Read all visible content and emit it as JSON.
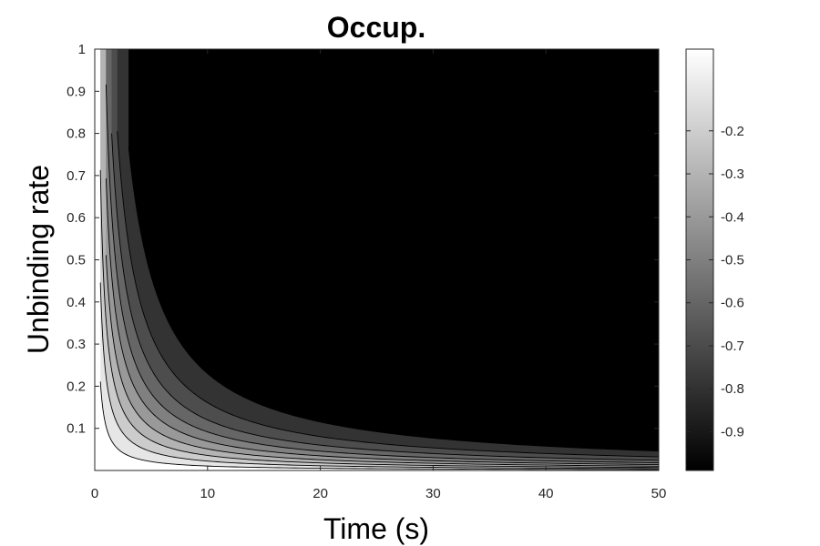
{
  "chart_data": {
    "type": "heatmap",
    "subtype": "filled-contour",
    "title": "Occup.",
    "xlabel": "Time (s)",
    "ylabel": "Unbinding rate",
    "xlim": [
      0,
      50
    ],
    "ylim": [
      0,
      1
    ],
    "xticks": [
      0,
      10,
      20,
      30,
      40,
      50
    ],
    "yticks": [
      0.1,
      0.2,
      0.3,
      0.4,
      0.5,
      0.6,
      0.7,
      0.8,
      0.9,
      1
    ],
    "colormap": "gray",
    "color_limits": [
      -1,
      0
    ],
    "colorbar_ticks": [
      -0.9,
      -0.8,
      -0.7,
      -0.6,
      -0.5,
      -0.4,
      -0.3,
      -0.2
    ],
    "contour_levels": [
      -0.1,
      -0.2,
      -0.3,
      -0.4,
      -0.5,
      -0.6,
      -0.7,
      -0.8,
      -0.9
    ],
    "level_line_points": [
      {
        "level": -0.1,
        "points": [
          [
            0.5,
            0.211
          ],
          [
            1,
            0.105
          ],
          [
            3,
            0.035
          ],
          [
            5,
            0.0211
          ],
          [
            10,
            0.0105
          ],
          [
            20,
            0.0053
          ],
          [
            50,
            0.0021
          ]
        ]
      },
      {
        "level": -0.2,
        "points": [
          [
            0.5,
            0.446
          ],
          [
            1,
            0.223
          ],
          [
            3,
            0.074
          ],
          [
            5,
            0.0446
          ],
          [
            10,
            0.0223
          ],
          [
            20,
            0.0112
          ],
          [
            50,
            0.0045
          ]
        ]
      },
      {
        "level": -0.3,
        "points": [
          [
            0.5,
            0.713
          ],
          [
            1,
            0.357
          ],
          [
            3,
            0.119
          ],
          [
            5,
            0.0713
          ],
          [
            10,
            0.0357
          ],
          [
            20,
            0.0178
          ],
          [
            50,
            0.0071
          ]
        ]
      },
      {
        "level": -0.4,
        "points": [
          [
            1,
            0.511
          ],
          [
            2,
            0.255
          ],
          [
            5,
            0.102
          ],
          [
            10,
            0.0511
          ],
          [
            20,
            0.0255
          ],
          [
            50,
            0.0102
          ]
        ]
      },
      {
        "level": -0.5,
        "points": [
          [
            1,
            0.693
          ],
          [
            2,
            0.347
          ],
          [
            5,
            0.139
          ],
          [
            10,
            0.0693
          ],
          [
            20,
            0.0347
          ],
          [
            50,
            0.0139
          ]
        ]
      },
      {
        "level": -0.6,
        "points": [
          [
            1,
            0.916
          ],
          [
            2,
            0.458
          ],
          [
            5,
            0.183
          ],
          [
            10,
            0.0916
          ],
          [
            20,
            0.0458
          ],
          [
            50,
            0.0183
          ]
        ]
      },
      {
        "level": -0.7,
        "points": [
          [
            1.5,
            0.8
          ],
          [
            2,
            0.602
          ],
          [
            5,
            0.241
          ],
          [
            10,
            0.12
          ],
          [
            20,
            0.0602
          ],
          [
            50,
            0.0241
          ]
        ]
      },
      {
        "level": -0.8,
        "points": [
          [
            2,
            0.805
          ],
          [
            5,
            0.322
          ],
          [
            10,
            0.161
          ],
          [
            20,
            0.0805
          ],
          [
            50,
            0.0322
          ]
        ]
      },
      {
        "level": -0.9,
        "points": [
          [
            3,
            0.768
          ],
          [
            5,
            0.461
          ],
          [
            10,
            0.23
          ],
          [
            20,
            0.115
          ],
          [
            50,
            0.0461
          ]
        ]
      }
    ],
    "min_shade_region": "above the -0.9 contour (long time, high unbinding rate)",
    "level_fill_colors": {
      "above_-0.1": "#ffffff",
      "-0.1_to_-0.2": "#e6e6e6",
      "-0.2_to_-0.3": "#cccccc",
      "-0.3_to_-0.4": "#b3b3b3",
      "-0.4_to_-0.5": "#999999",
      "-0.5_to_-0.6": "#808080",
      "-0.6_to_-0.7": "#666666",
      "-0.7_to_-0.8": "#4d4d4d",
      "-0.8_to_-0.9": "#333333",
      "below_-0.9": "#000000"
    },
    "grid": false
  }
}
